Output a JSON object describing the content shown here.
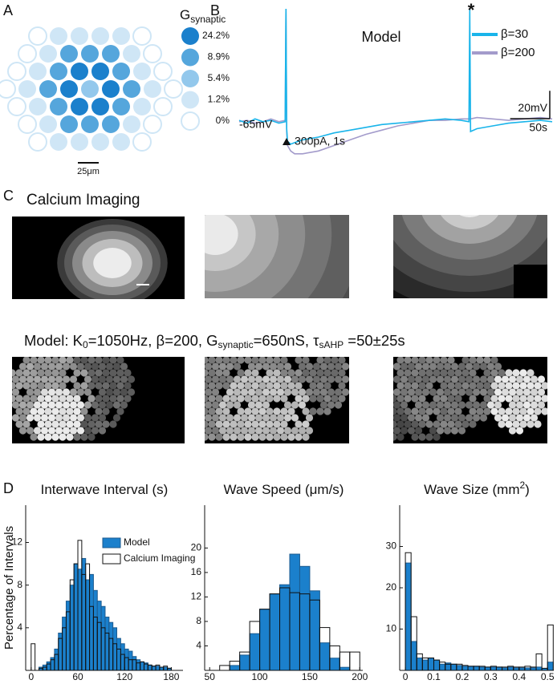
{
  "panel_labels": [
    "A",
    "B",
    "C",
    "D"
  ],
  "panel_a": {
    "legend_title": "G",
    "legend_title_sub": "synaptic",
    "levels": [
      {
        "label": "24.2%",
        "color": "#1b80cc"
      },
      {
        "label": "8.9%",
        "color": "#55a6dc"
      },
      {
        "label": "5.4%",
        "color": "#93c8ec"
      },
      {
        "label": "1.2%",
        "color": "#cfe6f6"
      },
      {
        "label": "0%",
        "color": "#ffffff"
      }
    ],
    "scale_bar_label": "25μm"
  },
  "panel_c": {
    "title": "Calcium Imaging",
    "model_caption": [
      "Model: K",
      "0",
      "=1050Hz, β=200, G",
      "synaptic",
      "=650nS, τ",
      "sAHP",
      " =50±25s"
    ]
  },
  "chart_data": [
    {
      "type": "line",
      "title": "Model",
      "x": [
        0,
        10,
        20,
        30,
        40,
        50,
        58,
        59,
        60,
        61,
        65,
        70,
        80,
        100,
        120,
        140,
        160,
        180,
        200,
        220,
        240,
        260,
        280,
        290,
        291,
        292,
        300,
        320,
        340,
        360,
        380,
        395
      ],
      "series": [
        {
          "name": "β=200",
          "color": "#a39bcb",
          "values": [
            -65,
            -64,
            -66,
            -65,
            -63,
            -65,
            -64,
            16,
            -72,
            -82,
            -86,
            -88,
            -88,
            -86,
            -82,
            -78,
            -74,
            -71,
            -68,
            -66,
            -64,
            -64,
            -63,
            -63,
            -63,
            -63,
            -62,
            -63,
            -64,
            -63,
            -62,
            -63
          ]
        },
        {
          "name": "β=30",
          "color": "#19b4ea",
          "values": [
            -64,
            -66,
            -63,
            -65,
            -64,
            -66,
            -65,
            16,
            -70,
            -79,
            -81,
            -80,
            -78,
            -76,
            -73,
            -71,
            -69,
            -67,
            -66,
            -65,
            -64,
            -63,
            -64,
            -65,
            16,
            -72,
            -70,
            -68,
            -66,
            -65,
            -64,
            -65
          ]
        }
      ],
      "xlim": [
        0,
        395
      ],
      "ylim": [
        -95,
        20
      ],
      "legend": "upper right",
      "baseline_label": "-65mV",
      "stimulus_label": "300pA, 1s",
      "marker_label": "*",
      "scale_bar": {
        "x": 50,
        "x_label": "50s",
        "y": 20,
        "y_label": "20mV"
      }
    },
    {
      "type": "histogram",
      "title": "Interwave Interval (s)",
      "ylabel": "Percentage of Intervals",
      "bins": [
        0,
        5,
        10,
        15,
        20,
        25,
        30,
        35,
        40,
        45,
        50,
        55,
        60,
        65,
        70,
        75,
        80,
        85,
        90,
        95,
        100,
        105,
        110,
        115,
        120,
        125,
        130,
        135,
        140,
        145,
        150,
        155,
        160,
        165,
        170,
        175,
        180
      ],
      "series": [
        {
          "name": "Model",
          "color": "#1b80cc",
          "edgecolor": "#1d5b8f",
          "values": [
            0,
            0,
            0.3,
            0.5,
            0.8,
            1.2,
            2,
            3.5,
            5,
            6.5,
            8,
            10,
            9.5,
            10.5,
            8.5,
            9,
            7.5,
            6.5,
            6,
            5,
            4.5,
            4,
            3,
            2.5,
            2,
            1.8,
            1.3,
            1,
            0.8,
            0.7,
            0.5,
            0.4,
            0.4,
            0.3,
            0.3,
            0.2
          ]
        },
        {
          "name": "Calcium Imaging",
          "color": "none",
          "edgecolor": "#111111",
          "values": [
            2.5,
            0,
            0.2,
            0.3,
            0.6,
            1,
            1.5,
            3,
            4,
            5.5,
            8.5,
            10,
            12.2,
            9,
            10,
            6,
            5,
            4.5,
            4,
            3.5,
            3,
            2.5,
            2,
            1.5,
            1.2,
            1,
            1,
            0.7,
            0.8,
            0.6,
            0.5,
            0.4,
            0.5,
            0.3,
            0.4,
            0.2
          ]
        }
      ],
      "xlim": [
        -7,
        195
      ],
      "ylim": [
        0,
        15.5
      ],
      "xticks": [
        0,
        60,
        120,
        180
      ],
      "yticks": [
        4,
        8,
        12
      ],
      "legend": "upper right"
    },
    {
      "type": "histogram",
      "title": "Wave Speed (μm/s)",
      "bins": [
        60,
        70,
        80,
        90,
        100,
        110,
        120,
        130,
        140,
        150,
        160,
        170,
        180,
        190,
        200
      ],
      "series": [
        {
          "name": "Model",
          "color": "#1b80cc",
          "edgecolor": "#1d5b8f",
          "values": [
            0,
            0.8,
            2.5,
            6,
            10,
            12.5,
            14,
            19,
            17,
            13,
            4.5,
            2,
            0.5,
            0
          ]
        },
        {
          "name": "Calcium Imaging",
          "color": "none",
          "edgecolor": "#111111",
          "values": [
            0.8,
            1.5,
            3,
            8,
            10,
            12.5,
            13.5,
            12.7,
            12.5,
            11.5,
            7,
            4,
            3,
            3
          ]
        }
      ],
      "xlim": [
        45,
        203
      ],
      "ylim": [
        0,
        27
      ],
      "xticks": [
        50,
        100,
        150,
        200
      ],
      "yticks": [
        4,
        8,
        12,
        16,
        20
      ]
    },
    {
      "type": "histogram",
      "title": "Wave Size (mm",
      "title_sup": "2",
      "title_end": ")",
      "bins": [
        0,
        0.02,
        0.04,
        0.06,
        0.08,
        0.1,
        0.12,
        0.14,
        0.16,
        0.18,
        0.2,
        0.22,
        0.24,
        0.26,
        0.28,
        0.3,
        0.32,
        0.34,
        0.36,
        0.38,
        0.4,
        0.42,
        0.44,
        0.46,
        0.48,
        0.5,
        0.52
      ],
      "series": [
        {
          "name": "Model",
          "color": "#1b80cc",
          "edgecolor": "#1d5b8f",
          "values": [
            26,
            7,
            3,
            2.5,
            3,
            2.5,
            1.5,
            1.8,
            1.5,
            1.2,
            1,
            1,
            1,
            0.8,
            0.8,
            0.8,
            0.8,
            0.6,
            0.8,
            0.6,
            0.6,
            0.6,
            0.6,
            0.8,
            0.5,
            2
          ]
        },
        {
          "name": "Calcium Imaging",
          "color": "none",
          "edgecolor": "#111111",
          "values": [
            28.5,
            13,
            4,
            3,
            3,
            2.5,
            2,
            1.5,
            1.5,
            1.5,
            1.2,
            1,
            1,
            1,
            0.8,
            1,
            0.8,
            0.8,
            1,
            0.8,
            0.8,
            1,
            0.8,
            4,
            0.5,
            11
          ]
        }
      ],
      "xlim": [
        -0.02,
        0.522
      ],
      "ylim": [
        0,
        40
      ],
      "xticks": [
        0,
        0.1,
        0.2,
        0.3,
        0.4,
        0.5
      ],
      "yticks": [
        10,
        20,
        30
      ]
    }
  ]
}
